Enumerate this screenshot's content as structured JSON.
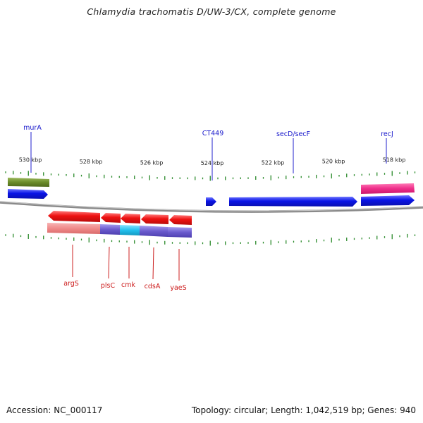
{
  "title": "Chlamydia trachomatis D/UW-3/CX, complete genome",
  "accession": "Accession: NC_000117",
  "topology": "Topology: circular; Length: 1,042,519 bp; Genes: 940",
  "ticks": [
    {
      "label": "530 kbp",
      "kbp": 530
    },
    {
      "label": "528 kbp",
      "kbp": 528
    },
    {
      "label": "526 kbp",
      "kbp": 526
    },
    {
      "label": "524 kbp",
      "kbp": 524
    },
    {
      "label": "522 kbp",
      "kbp": 522
    },
    {
      "label": "520 kbp",
      "kbp": 520
    },
    {
      "label": "518 kbp",
      "kbp": 518
    }
  ],
  "labels_top": [
    {
      "name": "murA",
      "color": "#1a1acc"
    },
    {
      "name": "CT449",
      "color": "#1a1acc"
    },
    {
      "name": "secD/secF",
      "color": "#1a1acc"
    },
    {
      "name": "recJ",
      "color": "#1a1acc"
    }
  ],
  "labels_bottom": [
    {
      "name": "argS",
      "color": "#cc1a1a"
    },
    {
      "name": "plsC",
      "color": "#cc1a1a"
    },
    {
      "name": "cmk",
      "color": "#cc1a1a"
    },
    {
      "name": "cdsA",
      "color": "#cc1a1a"
    },
    {
      "name": "yaeS",
      "color": "#cc1a1a"
    }
  ],
  "colors": {
    "forward_cds": "#0a14e6",
    "reverse_cds": "#ee1111",
    "murA_cog": "#6b8c2a",
    "recJ_cog": "#ee2e8a",
    "argS_cog": "#f08a8a",
    "plsC_cog": "#6a5acd",
    "cmk_cog": "#22c0ee",
    "backbone": "#888888",
    "tick": "#2a8a2a"
  }
}
